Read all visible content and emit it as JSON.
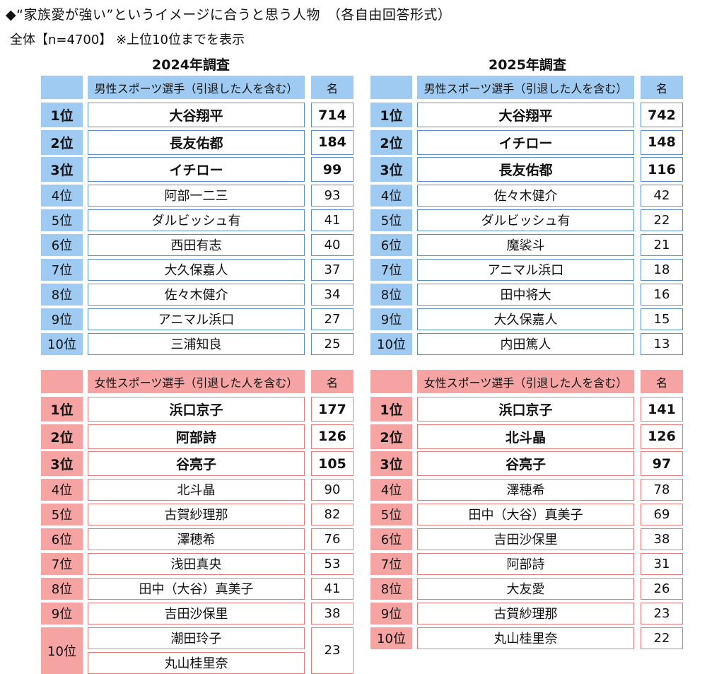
{
  "title": "◆“家族愛が強い”というイメージに合うと思う人物　（各自由回答形式）",
  "subtitle": "全体【n=4700】 ※上位10位までを表示",
  "chart_data": [
    {
      "type": "table",
      "year": "2024年調査",
      "header": {
        "category": "男性スポーツ選手（引退した人を含む）",
        "unit": "名"
      },
      "rows": [
        {
          "rank": "1位",
          "names": [
            "大谷翔平"
          ],
          "count": 714
        },
        {
          "rank": "2位",
          "names": [
            "長友佑都"
          ],
          "count": 184
        },
        {
          "rank": "3位",
          "names": [
            "イチロー"
          ],
          "count": 99
        },
        {
          "rank": "4位",
          "names": [
            "阿部一二三"
          ],
          "count": 93
        },
        {
          "rank": "5位",
          "names": [
            "ダルビッシュ有"
          ],
          "count": 41
        },
        {
          "rank": "6位",
          "names": [
            "西田有志"
          ],
          "count": 40
        },
        {
          "rank": "7位",
          "names": [
            "大久保嘉人"
          ],
          "count": 37
        },
        {
          "rank": "8位",
          "names": [
            "佐々木健介"
          ],
          "count": 34
        },
        {
          "rank": "9位",
          "names": [
            "アニマル浜口"
          ],
          "count": 27
        },
        {
          "rank": "10位",
          "names": [
            "三浦知良"
          ],
          "count": 25
        }
      ]
    },
    {
      "type": "table",
      "year": "2025年調査",
      "header": {
        "category": "男性スポーツ選手（引退した人を含む）",
        "unit": "名"
      },
      "rows": [
        {
          "rank": "1位",
          "names": [
            "大谷翔平"
          ],
          "count": 742
        },
        {
          "rank": "2位",
          "names": [
            "イチロー"
          ],
          "count": 148
        },
        {
          "rank": "3位",
          "names": [
            "長友佑都"
          ],
          "count": 116
        },
        {
          "rank": "4位",
          "names": [
            "佐々木健介"
          ],
          "count": 42
        },
        {
          "rank": "5位",
          "names": [
            "ダルビッシュ有"
          ],
          "count": 22
        },
        {
          "rank": "6位",
          "names": [
            "魔裟斗"
          ],
          "count": 21
        },
        {
          "rank": "7位",
          "names": [
            "アニマル浜口"
          ],
          "count": 18
        },
        {
          "rank": "8位",
          "names": [
            "田中将大"
          ],
          "count": 16
        },
        {
          "rank": "9位",
          "names": [
            "大久保嘉人"
          ],
          "count": 15
        },
        {
          "rank": "10位",
          "names": [
            "内田篤人"
          ],
          "count": 13
        }
      ]
    },
    {
      "type": "table",
      "year": "2024年調査",
      "header": {
        "category": "女性スポーツ選手（引退した人を含む）",
        "unit": "名"
      },
      "rows": [
        {
          "rank": "1位",
          "names": [
            "浜口京子"
          ],
          "count": 177
        },
        {
          "rank": "2位",
          "names": [
            "阿部詩"
          ],
          "count": 126
        },
        {
          "rank": "3位",
          "names": [
            "谷亮子"
          ],
          "count": 105
        },
        {
          "rank": "4位",
          "names": [
            "北斗晶"
          ],
          "count": 90
        },
        {
          "rank": "5位",
          "names": [
            "古賀紗理那"
          ],
          "count": 82
        },
        {
          "rank": "6位",
          "names": [
            "澤穂希"
          ],
          "count": 76
        },
        {
          "rank": "7位",
          "names": [
            "浅田真央"
          ],
          "count": 53
        },
        {
          "rank": "8位",
          "names": [
            "田中（大谷）真美子"
          ],
          "count": 41
        },
        {
          "rank": "9位",
          "names": [
            "吉田沙保里"
          ],
          "count": 38
        },
        {
          "rank": "10位",
          "names": [
            "潮田玲子",
            "丸山桂里奈"
          ],
          "count": 23
        }
      ]
    },
    {
      "type": "table",
      "year": "2025年調査",
      "header": {
        "category": "女性スポーツ選手（引退した人を含む）",
        "unit": "名"
      },
      "rows": [
        {
          "rank": "1位",
          "names": [
            "浜口京子"
          ],
          "count": 141
        },
        {
          "rank": "2位",
          "names": [
            "北斗晶"
          ],
          "count": 126
        },
        {
          "rank": "3位",
          "names": [
            "谷亮子"
          ],
          "count": 97
        },
        {
          "rank": "4位",
          "names": [
            "澤穂希"
          ],
          "count": 78
        },
        {
          "rank": "5位",
          "names": [
            "田中（大谷）真美子"
          ],
          "count": 69
        },
        {
          "rank": "6位",
          "names": [
            "吉田沙保里"
          ],
          "count": 38
        },
        {
          "rank": "7位",
          "names": [
            "阿部詩"
          ],
          "count": 31
        },
        {
          "rank": "8位",
          "names": [
            "大友愛"
          ],
          "count": 26
        },
        {
          "rank": "9位",
          "names": [
            "古賀紗理那"
          ],
          "count": 23
        },
        {
          "rank": "10位",
          "names": [
            "丸山桂里奈"
          ],
          "count": 22
        }
      ]
    }
  ]
}
